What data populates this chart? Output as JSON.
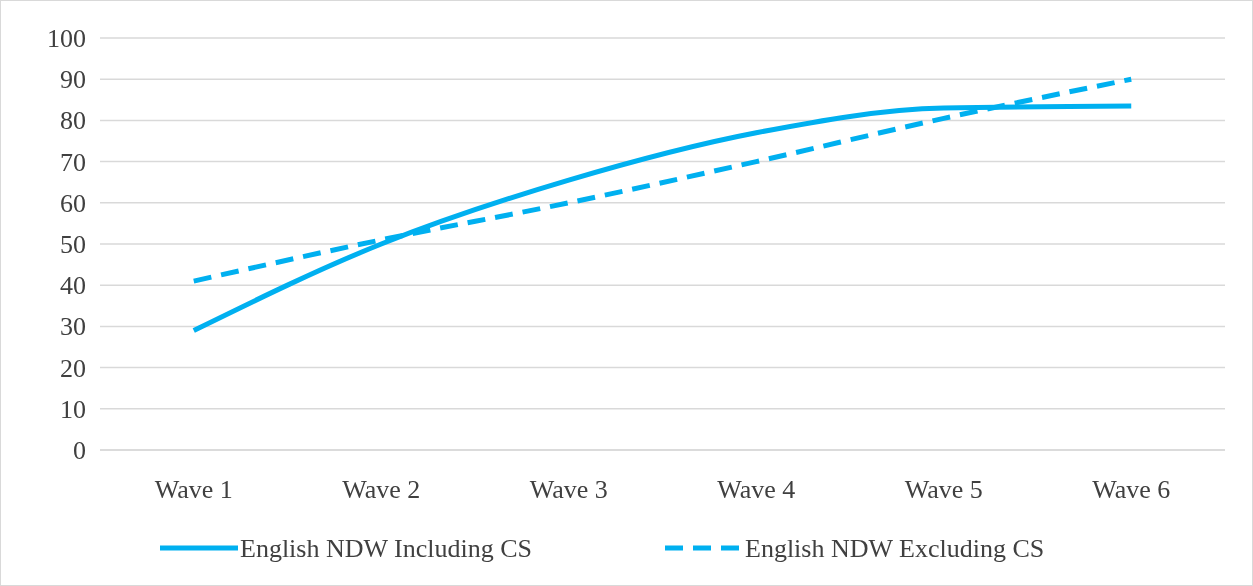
{
  "chart_data": {
    "type": "line",
    "categories": [
      "Wave 1",
      "Wave 2",
      "Wave 3",
      "Wave 4",
      "Wave 5",
      "Wave 6"
    ],
    "series": [
      {
        "name": "English NDW Including CS",
        "color": "#00b0f0",
        "values": [
          29,
          50,
          65.5,
          77,
          83,
          83.5
        ],
        "line_style": "solid"
      },
      {
        "name": "English NDW Excluding CS",
        "color": "#00b0f0",
        "values": [
          41,
          51,
          60,
          70,
          80.5,
          90
        ],
        "line_style": "dashed"
      }
    ],
    "ylim": [
      0,
      100
    ],
    "yticks": [
      0,
      10,
      20,
      30,
      40,
      50,
      60,
      70,
      80,
      90,
      100
    ],
    "grid": "y",
    "legend": "bottom"
  }
}
